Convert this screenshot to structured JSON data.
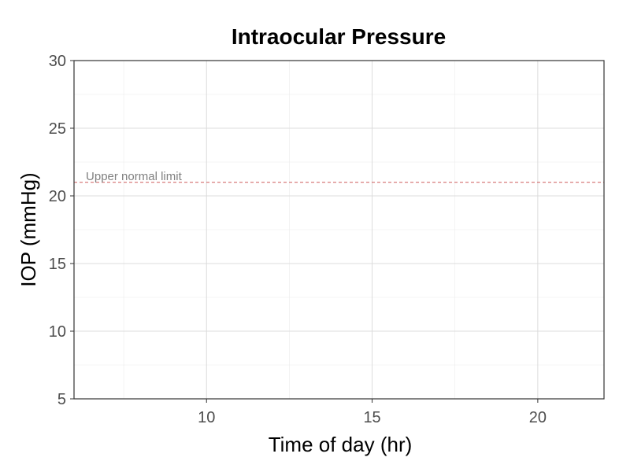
{
  "chart_data": {
    "type": "line",
    "title": "Intraocular Pressure",
    "xlabel": "Time of day (hr)",
    "ylabel": "IOP (mmHg)",
    "xlim": [
      6,
      22
    ],
    "ylim": [
      5,
      30
    ],
    "x_ticks": [
      10,
      15,
      20
    ],
    "x_minor_ticks": [
      7.5,
      12.5,
      17.5
    ],
    "y_ticks": [
      5,
      10,
      15,
      20,
      25,
      30
    ],
    "y_minor_ticks": [
      7.5,
      12.5,
      17.5,
      22.5,
      27.5
    ],
    "grid": true,
    "series": [],
    "reference_line": {
      "y": 21,
      "label": "Upper normal limit",
      "label_x": 6.5,
      "style": "dashed",
      "color": "#cd5c5c"
    },
    "colors": {
      "grid": "#ebebeb",
      "axis": "#333333",
      "tick_text": "#4d4d4d",
      "annotation_text": "#808080"
    }
  }
}
